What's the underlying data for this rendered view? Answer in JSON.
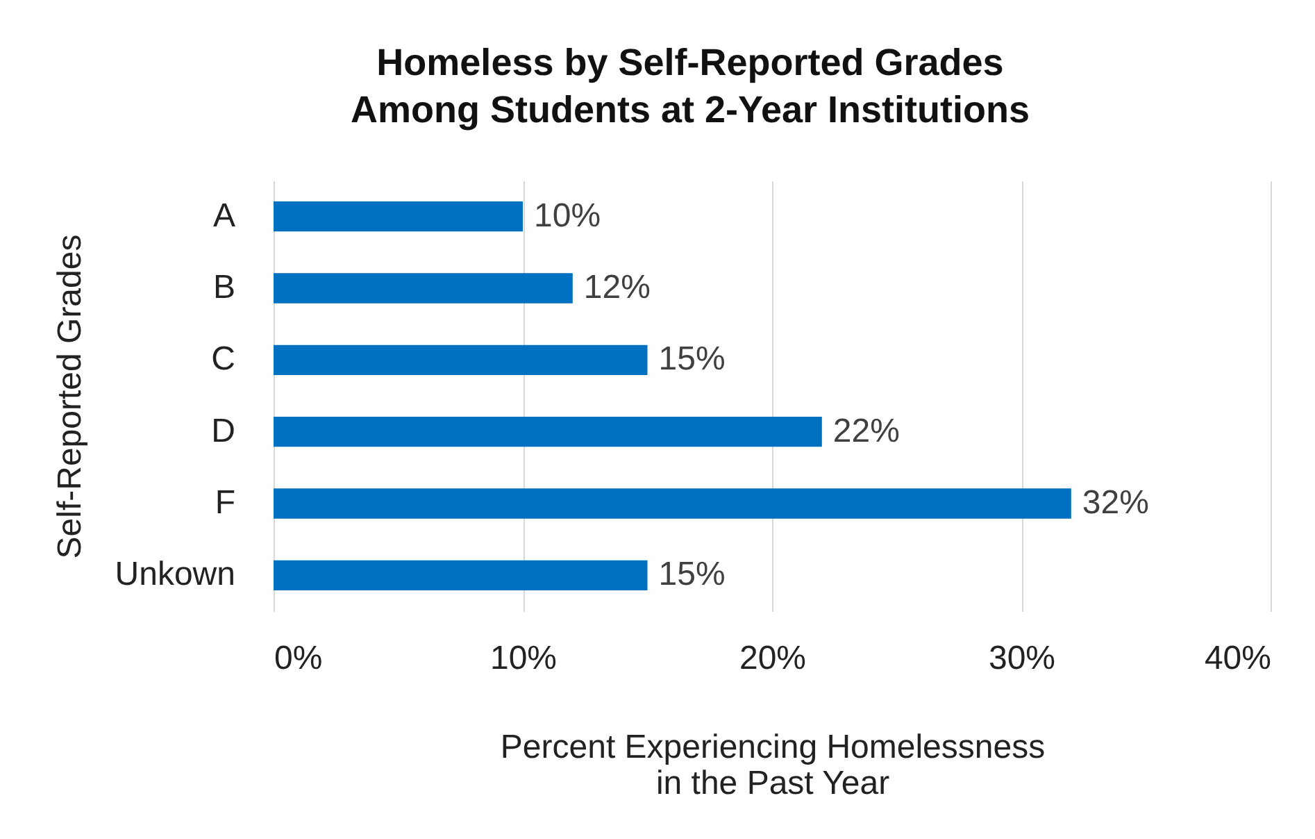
{
  "chart_data": {
    "type": "bar",
    "orientation": "horizontal",
    "title": "Homeless by Self-Reported Grades\nAmong Students at 2-Year Institutions",
    "xlabel": "Percent Experiencing Homelessness\nin the Past Year",
    "ylabel": "Self-Reported Grades",
    "categories": [
      "A",
      "B",
      "C",
      "D",
      "F",
      "Unkown"
    ],
    "values": [
      10,
      12,
      15,
      22,
      32,
      15
    ],
    "value_labels": [
      "10%",
      "12%",
      "15%",
      "22%",
      "32%",
      "15%"
    ],
    "color": "#0070c0",
    "xlim": [
      0,
      40
    ],
    "xticks": [
      {
        "value": 0,
        "label": "0%"
      },
      {
        "value": 10,
        "label": "10%"
      },
      {
        "value": 20,
        "label": "20%"
      },
      {
        "value": 30,
        "label": "30%"
      },
      {
        "value": 40,
        "label": "40%"
      }
    ],
    "grid": "x"
  }
}
